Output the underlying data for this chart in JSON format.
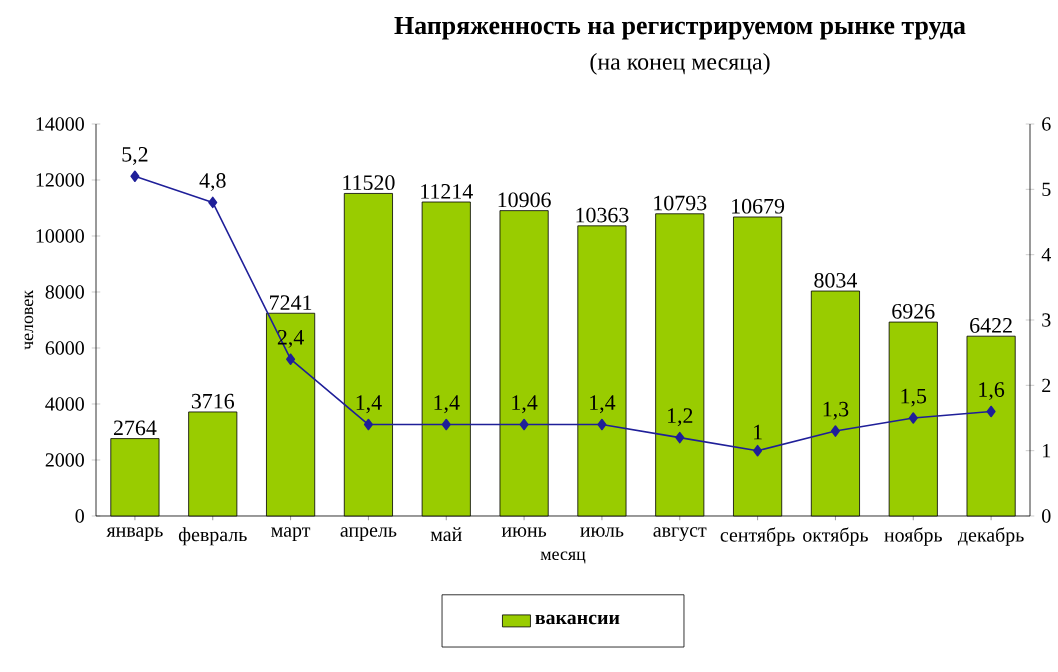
{
  "chart_data": {
    "type": "bar",
    "title": "Напряженность на регистрируемом рынке труда",
    "subtitle": "(на конец месяца)",
    "xlabel": "месяц",
    "ylabel": "человек",
    "categories": [
      "январь",
      "февраль",
      "март",
      "апрель",
      "май",
      "июнь",
      "июль",
      "август",
      "сентябрь",
      "октябрь",
      "ноябрь",
      "декабрь"
    ],
    "series": [
      {
        "name": "вакансии",
        "color": "#99cc00",
        "values": [
          2764,
          3716,
          7241,
          11520,
          11214,
          10906,
          10363,
          10793,
          10679,
          8034,
          6926,
          6422
        ],
        "value_labels": [
          "2764",
          "3716",
          "7241",
          "11520",
          "11214",
          "10906",
          "10363",
          "10793",
          "10679",
          "8034",
          "6926",
          "6422"
        ]
      },
      {
        "type": "line",
        "axis": "y2",
        "color": "#1f1f99",
        "values": [
          5.2,
          4.8,
          2.4,
          1.4,
          1.4,
          1.4,
          1.4,
          1.2,
          1,
          1.3,
          1.5,
          1.6
        ],
        "value_labels": [
          "5,2",
          "4,8",
          "2,4",
          "1,4",
          "1,4",
          "1,4",
          "1,4",
          "1,2",
          "1",
          "1,3",
          "1,5",
          "1,6"
        ]
      }
    ],
    "marker": "diamond",
    "ylim": [
      0,
      14000
    ],
    "yticks": [
      0,
      2000,
      4000,
      6000,
      8000,
      10000,
      12000,
      14000
    ],
    "y2lim": [
      0,
      6
    ],
    "y2ticks": [
      0,
      1,
      2,
      3,
      4,
      5,
      6
    ],
    "legend": "bottom"
  }
}
